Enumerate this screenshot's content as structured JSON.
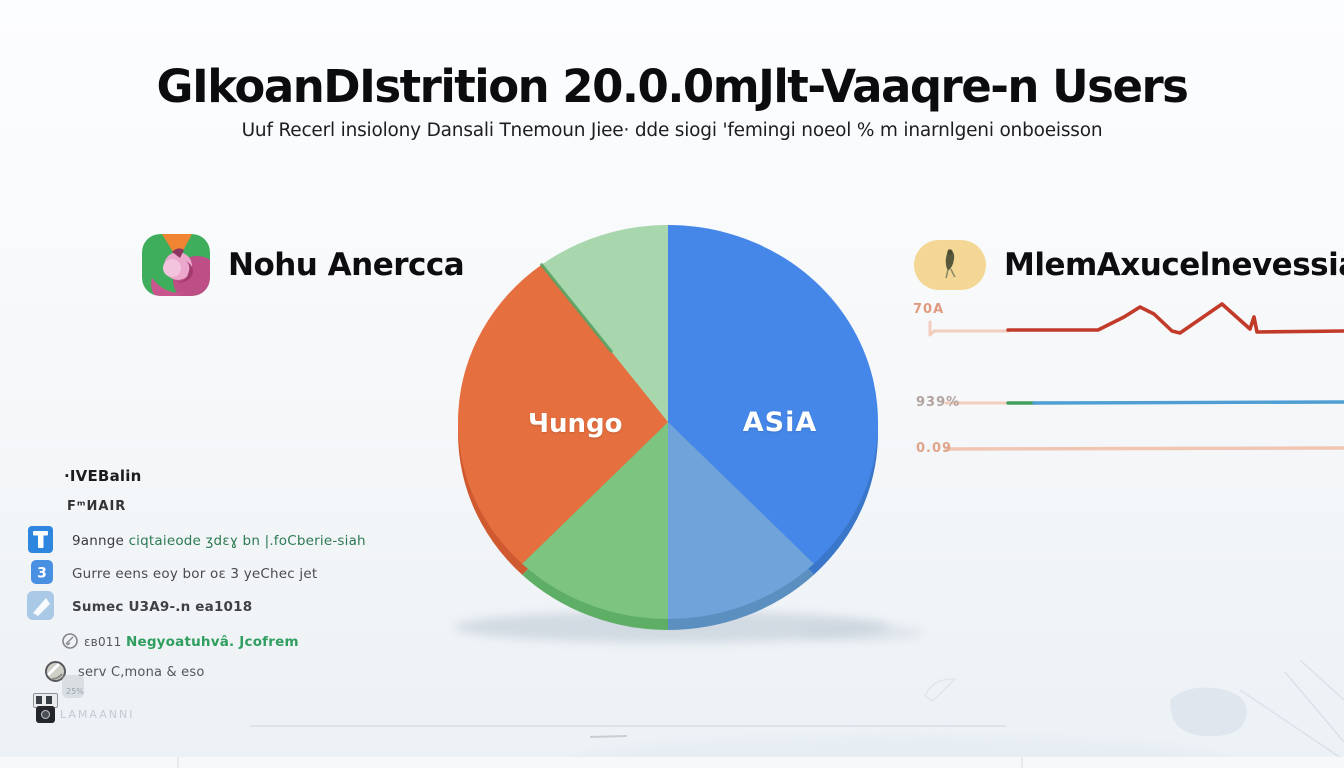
{
  "header": {
    "title": "GIkoanDIstrition 20.0.0mJlt-Vaaqre-n Users",
    "subtitle": "Uuf Recerl insiolony Dansali Tnemoun Jiee· dde siogi 'femingi noeol % m inarnlgeni onboeisson"
  },
  "regions": {
    "left": {
      "label": "Nohu Anercca",
      "icon": "swirl-logo-icon",
      "icon_colors": [
        "#3ead5c",
        "#f08433",
        "#be4e86",
        "#eca8cc"
      ]
    },
    "right": {
      "label": "MlemAxucelnevessia",
      "icon": "quill-badge-icon",
      "icon_colors": [
        "#f4d795",
        "#57573b"
      ]
    }
  },
  "chart_data": [
    {
      "type": "pie",
      "title": "GIkoanDIstrition 20.0.0mJlt-Vaaqre-n Users",
      "legend_position": "none",
      "slices": [
        {
          "label": "ASiA",
          "color": "#4587e9",
          "rim": "#3a76c9",
          "start_deg": 0,
          "end_deg": 136,
          "est_share_pct": 37.8
        },
        {
          "label": "",
          "color": "#6fa3d9",
          "rim": "#5b8fc0",
          "start_deg": 136,
          "end_deg": 180,
          "est_share_pct": 12.2
        },
        {
          "label": "",
          "color": "#7cc47f",
          "rim": "#5fae66",
          "start_deg": 180,
          "end_deg": 224,
          "est_share_pct": 12.2
        },
        {
          "label": "Чungo",
          "color": "#e56f3f",
          "rim": "#cf5a2f",
          "start_deg": 224,
          "end_deg": 323,
          "est_share_pct": 27.5
        },
        {
          "label": "",
          "color": "#a8d7ad",
          "rim": "#8cc494",
          "start_deg": 323,
          "end_deg": 360,
          "est_share_pct": 10.3
        }
      ]
    },
    {
      "type": "line",
      "title": "MlemAxucelnevessia sparklines",
      "grid": false,
      "rows": [
        {
          "label": "70A",
          "label_color": "#e09a80",
          "segments": [
            {
              "color": "#f2cdbd",
              "width": 3,
              "points": [
                [
                  930,
                  322
                ],
                [
                  930,
                  335
                ],
                [
                  934,
                  331
                ],
                [
                  1008,
                  331
                ]
              ]
            },
            {
              "color": "#c23b2a",
              "width": 3.6,
              "points": [
                [
                  1008,
                  330
                ],
                [
                  1098,
                  330
                ],
                [
                  1124,
                  317
                ],
                [
                  1140,
                  307
                ],
                [
                  1154,
                  314
                ],
                [
                  1172,
                  331
                ],
                [
                  1180,
                  333
                ],
                [
                  1222,
                  304
                ],
                [
                  1250,
                  329
                ],
                [
                  1254,
                  317
                ],
                [
                  1257,
                  332
                ],
                [
                  1344,
                  331
                ]
              ]
            }
          ]
        },
        {
          "label": "939%",
          "label_color": "#b2a2a0",
          "segments": [
            {
              "color": "#f2cdbd",
              "width": 3,
              "points": [
                [
                  946,
                  403
                ],
                [
                  1008,
                  403
                ]
              ]
            },
            {
              "color": "#43a05c",
              "width": 3.4,
              "points": [
                [
                  1008,
                  403
                ],
                [
                  1034,
                  403
                ]
              ]
            },
            {
              "color": "#4f9fd4",
              "width": 3.4,
              "points": [
                [
                  1034,
                  403
                ],
                [
                  1344,
                  402
                ]
              ]
            }
          ]
        },
        {
          "label": "0.09",
          "label_color": "#e0a48c",
          "segments": [
            {
              "color": "#f0c5b2",
              "width": 3.4,
              "points": [
                [
                  946,
                  449
                ],
                [
                  1344,
                  448
                ]
              ]
            }
          ]
        }
      ]
    }
  ],
  "legend": {
    "items": [
      {
        "icon": "none",
        "text": "·IVEBalin"
      },
      {
        "icon": "none",
        "text": "FᵐИAIR"
      },
      {
        "icon": "pillar-blue",
        "text": "9annge",
        "text2": "ciqtaieode ʒdɛɣ bn |.foCberie-siah"
      },
      {
        "icon": "three-blue",
        "text": "Gurre eens eoy bor oɛ 3 yeChec jet",
        "icon_glyph": "3"
      },
      {
        "icon": "plane-lightblue",
        "text": "Sumec U3A9-.n ea1018"
      },
      {
        "icon": "pencil-circle",
        "text": "ɛв011",
        "text2": "Negyoatuhvâ. Jcofrem"
      },
      {
        "icon": "coin-gray",
        "text": "serv C,mona & eso"
      },
      {
        "icon": "camera-dark",
        "text": "LAMAANNI",
        "note": "25%"
      }
    ]
  }
}
